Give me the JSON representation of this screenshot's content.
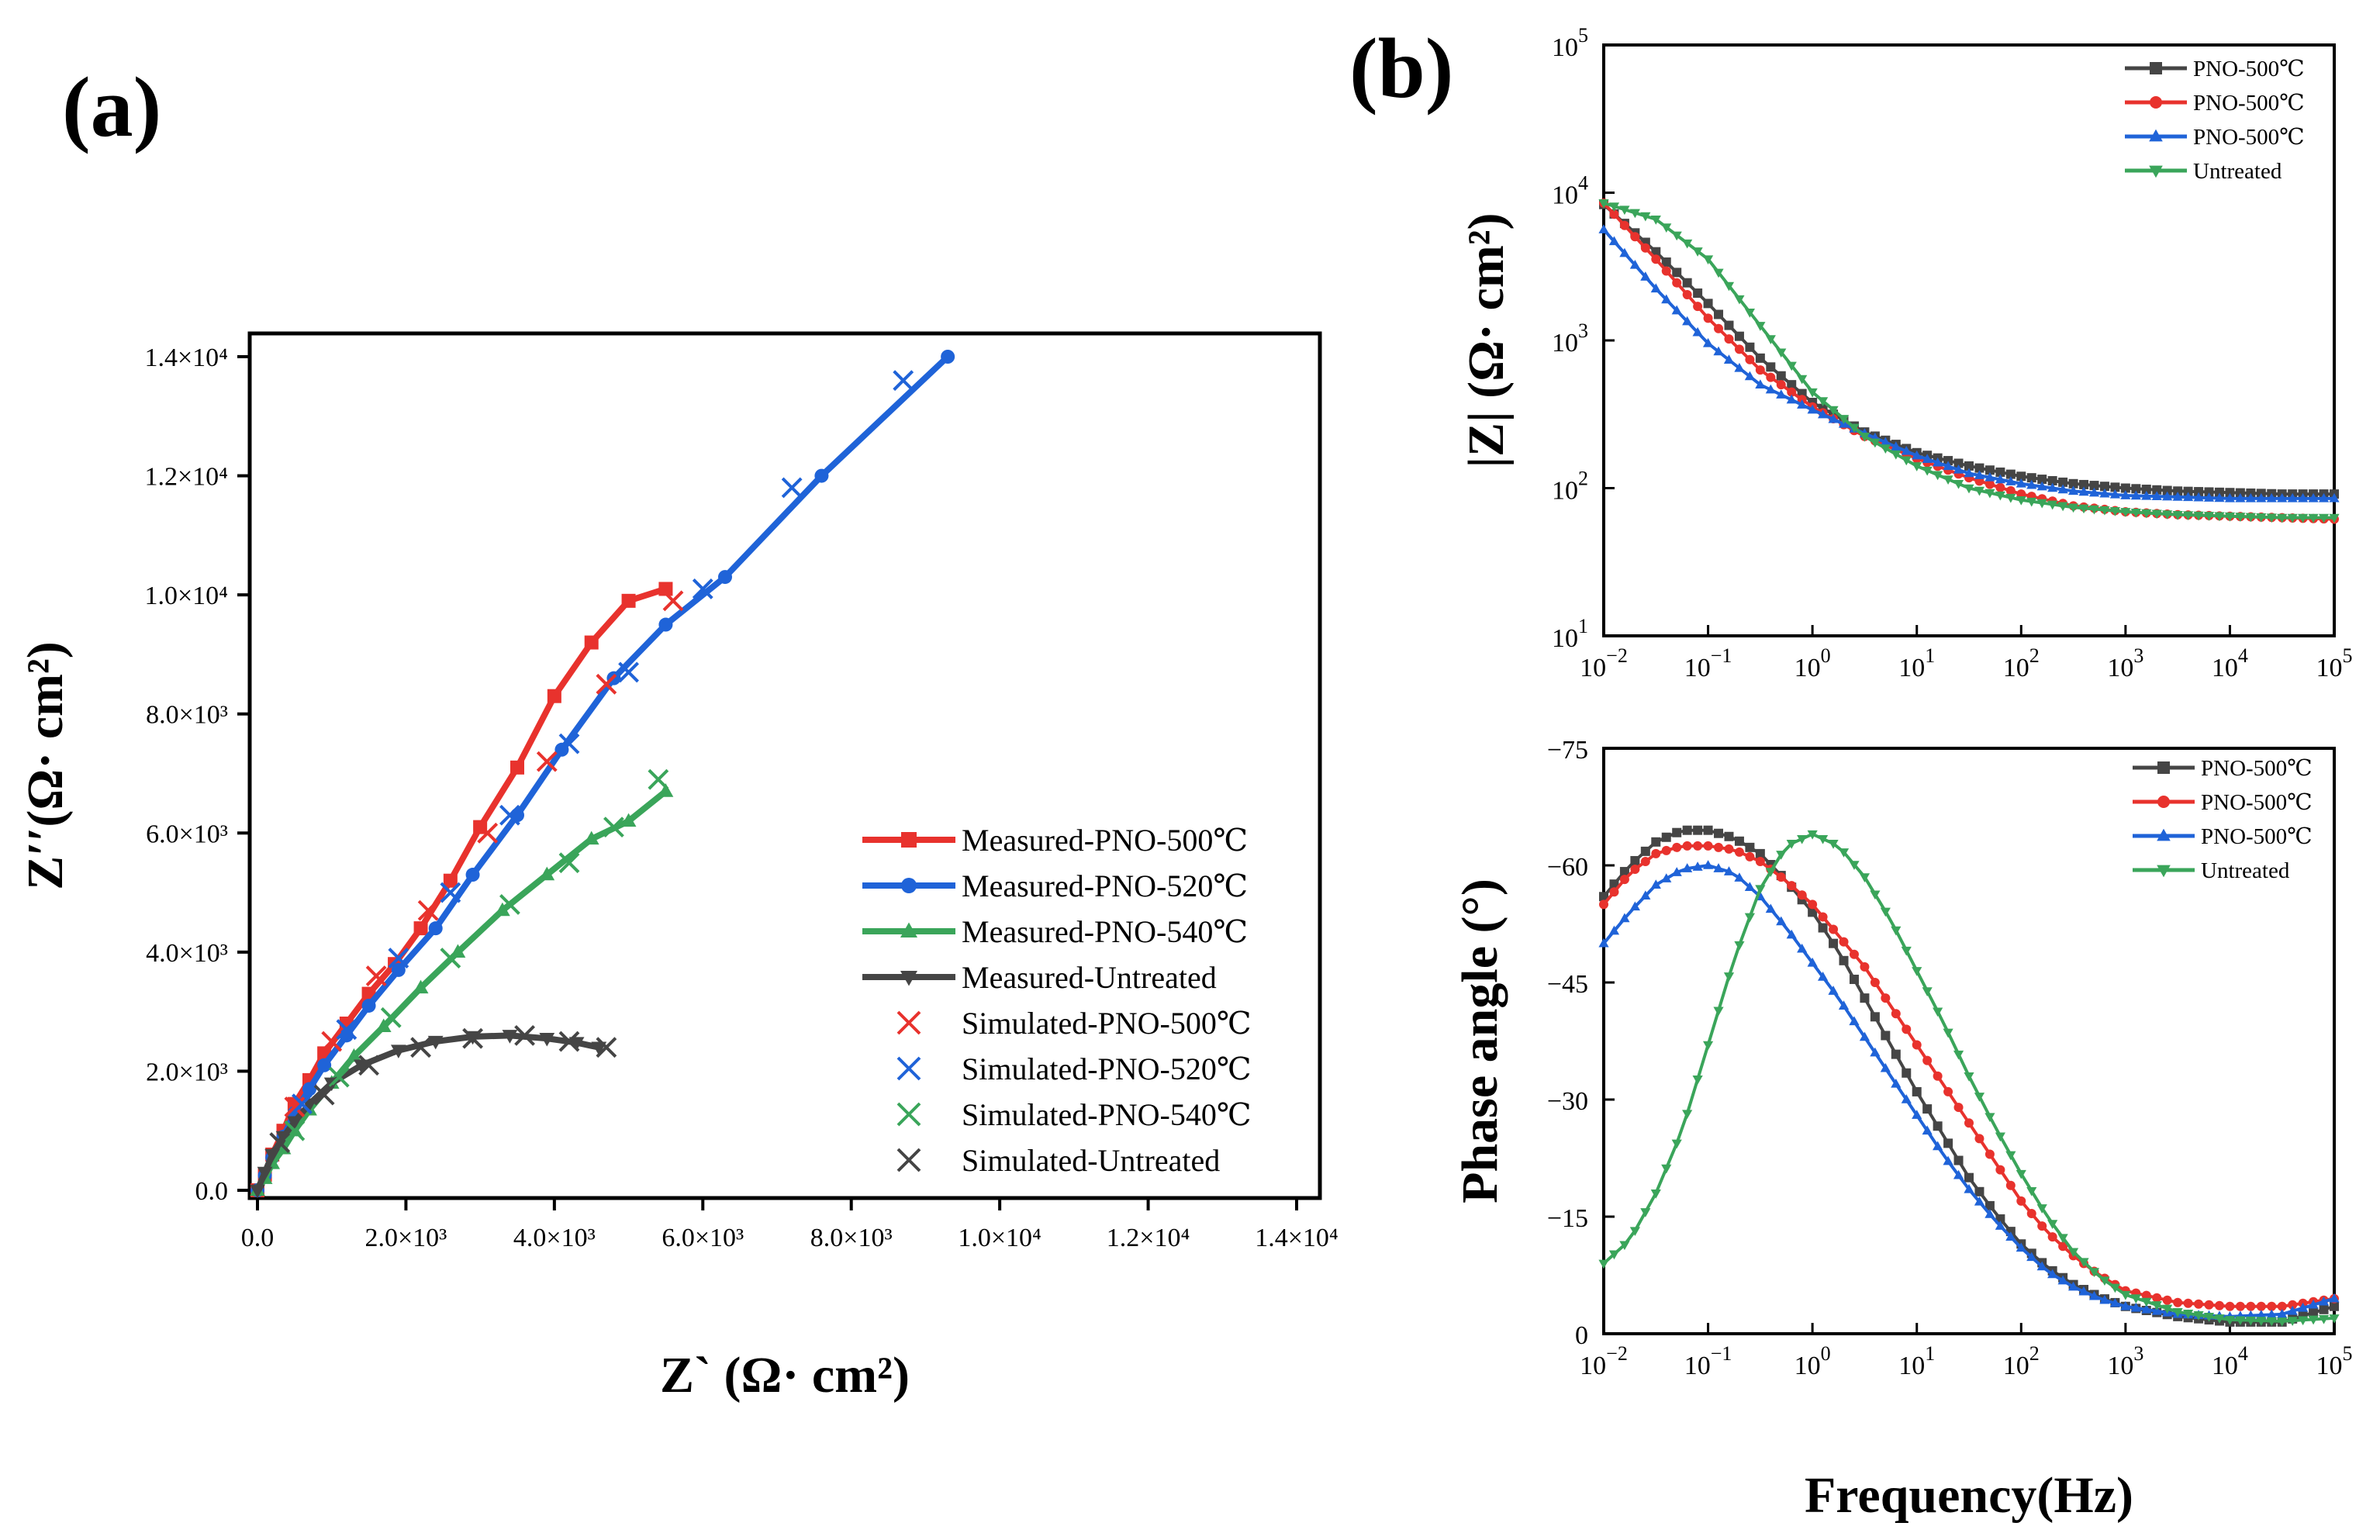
{
  "figure": {
    "panel_a_label": "(a)",
    "panel_b_label": "(b)"
  },
  "colors": {
    "red": "#e8322d",
    "blue": "#1f63d8",
    "green": "#3aa55a",
    "gray": "#454545"
  },
  "chart_data": [
    {
      "id": "nyquist",
      "type": "scatter",
      "title": "",
      "xlabel": "Z` (Ω· cm²)",
      "ylabel": "Z′′(Ω· cm²)",
      "xlim": [
        0,
        14000
      ],
      "ylim": [
        0,
        14500
      ],
      "xticks": [
        0,
        2000,
        4000,
        6000,
        8000,
        10000,
        12000,
        14000
      ],
      "xtick_labels": [
        "0.0",
        "2.0×10³",
        "4.0×10³",
        "6.0×10³",
        "8.0×10³",
        "1.0×10⁴",
        "1.2×10⁴",
        "1.4×10⁴"
      ],
      "yticks": [
        0,
        2000,
        4000,
        6000,
        8000,
        10000,
        12000,
        14000
      ],
      "ytick_labels": [
        "0.0",
        "2.0×10³",
        "4.0×10³",
        "6.0×10³",
        "8.0×10³",
        "1.0×10⁴",
        "1.2×10⁴",
        "1.4×10⁴"
      ],
      "legend_position": "bottom-right",
      "series": [
        {
          "name": "Measured-PNO-500℃",
          "color": "red",
          "marker": "square",
          "kind": "measured",
          "x": [
            0,
            100,
            200,
            350,
            500,
            700,
            900,
            1200,
            1500,
            1850,
            2200,
            2600,
            3000,
            3500,
            4000,
            4500,
            5000,
            5500
          ],
          "y": [
            0,
            260,
            600,
            1000,
            1450,
            1850,
            2300,
            2800,
            3300,
            3800,
            4400,
            5200,
            6100,
            7100,
            8300,
            9200,
            9900,
            10100
          ]
        },
        {
          "name": "Measured-PNO-520℃",
          "color": "blue",
          "marker": "circle",
          "kind": "measured",
          "x": [
            0,
            100,
            200,
            350,
            500,
            700,
            900,
            1200,
            1500,
            1900,
            2400,
            2900,
            3500,
            4100,
            4800,
            5500,
            6300,
            7600,
            9300
          ],
          "y": [
            0,
            250,
            550,
            900,
            1300,
            1700,
            2100,
            2600,
            3100,
            3700,
            4400,
            5300,
            6300,
            7400,
            8600,
            9500,
            10300,
            12000,
            14000
          ]
        },
        {
          "name": "Measured-PNO-540℃",
          "color": "green",
          "marker": "triangle-up",
          "kind": "measured",
          "x": [
            0,
            100,
            200,
            350,
            500,
            700,
            1000,
            1300,
            1700,
            2200,
            2700,
            3300,
            3900,
            4500,
            5000,
            5500
          ],
          "y": [
            0,
            200,
            450,
            700,
            1000,
            1350,
            1800,
            2250,
            2750,
            3400,
            4000,
            4700,
            5300,
            5900,
            6200,
            6700
          ]
        },
        {
          "name": "Measured-Untreated",
          "color": "gray",
          "marker": "triangle-down",
          "kind": "measured",
          "x": [
            0,
            100,
            200,
            350,
            500,
            700,
            1000,
            1400,
            1900,
            2400,
            2900,
            3400,
            3900,
            4300,
            4600
          ],
          "y": [
            0,
            300,
            600,
            900,
            1150,
            1450,
            1800,
            2100,
            2350,
            2500,
            2580,
            2600,
            2550,
            2480,
            2400
          ]
        },
        {
          "name": "Simulated-PNO-500℃",
          "color": "red",
          "marker": "x",
          "kind": "simulated",
          "x": [
            500,
            1000,
            1600,
            2300,
            3100,
            3900,
            4700,
            5600
          ],
          "y": [
            1400,
            2500,
            3600,
            4700,
            6000,
            7200,
            8500,
            9900
          ]
        },
        {
          "name": "Simulated-PNO-520℃",
          "color": "blue",
          "marker": "x",
          "kind": "simulated",
          "x": [
            600,
            1200,
            1900,
            2600,
            3400,
            4200,
            5000,
            6000,
            7200,
            8700
          ],
          "y": [
            1450,
            2700,
            3900,
            5000,
            6300,
            7500,
            8700,
            10100,
            11800,
            13600
          ]
        },
        {
          "name": "Simulated-PNO-540℃",
          "color": "green",
          "marker": "x",
          "kind": "simulated",
          "x": [
            500,
            1100,
            1800,
            2600,
            3400,
            4200,
            4800,
            5400
          ],
          "y": [
            1000,
            1900,
            2900,
            3900,
            4800,
            5500,
            6100,
            6900
          ]
        },
        {
          "name": "Simulated-Untreated",
          "color": "gray",
          "marker": "x",
          "kind": "simulated",
          "x": [
            300,
            900,
            1500,
            2200,
            2900,
            3600,
            4200,
            4700
          ],
          "y": [
            800,
            1600,
            2100,
            2400,
            2550,
            2600,
            2500,
            2400
          ]
        }
      ]
    },
    {
      "id": "bode-magnitude",
      "type": "line",
      "title": "",
      "xlabel": "",
      "ylabel": "|Z| (Ω· cm²)",
      "xscale": "log",
      "yscale": "log",
      "xlim": [
        0.01,
        100000
      ],
      "ylim": [
        10,
        100000
      ],
      "xtick_labels": [
        {
          "b": "10",
          "e": "−2"
        },
        {
          "b": "10",
          "e": "−1"
        },
        {
          "b": "10",
          "e": "0"
        },
        {
          "b": "10",
          "e": "1"
        },
        {
          "b": "10",
          "e": "2"
        },
        {
          "b": "10",
          "e": "3"
        },
        {
          "b": "10",
          "e": "4"
        },
        {
          "b": "10",
          "e": "5"
        }
      ],
      "ytick_labels": [
        {
          "b": "10",
          "e": "1"
        },
        {
          "b": "10",
          "e": "2"
        },
        {
          "b": "10",
          "e": "3"
        },
        {
          "b": "10",
          "e": "4"
        },
        {
          "b": "10",
          "e": "5"
        }
      ],
      "legend_position": "top-right",
      "series": [
        {
          "name": "PNO-500℃",
          "color": "gray",
          "marker": "square",
          "log_f": [
            -2,
            -1.5,
            -1,
            -0.5,
            0,
            0.5,
            1,
            1.5,
            2,
            2.5,
            3,
            3.5,
            4,
            4.5,
            5
          ],
          "log_z": [
            3.92,
            3.6,
            3.25,
            2.88,
            2.58,
            2.38,
            2.24,
            2.15,
            2.08,
            2.03,
            2.0,
            1.98,
            1.97,
            1.96,
            1.96
          ]
        },
        {
          "name": "PNO-500℃",
          "color": "red",
          "marker": "circle",
          "log_f": [
            -2,
            -1.5,
            -1,
            -0.5,
            0,
            0.5,
            1,
            1.5,
            2,
            2.5,
            3,
            3.5,
            4,
            4.5,
            5
          ],
          "log_z": [
            3.93,
            3.55,
            3.15,
            2.8,
            2.55,
            2.35,
            2.2,
            2.07,
            1.96,
            1.88,
            1.84,
            1.82,
            1.81,
            1.8,
            1.79
          ]
        },
        {
          "name": "PNO-500℃",
          "color": "blue",
          "marker": "triangle-up",
          "log_f": [
            -2,
            -1.5,
            -1,
            -0.5,
            0,
            0.5,
            1,
            1.5,
            2,
            2.5,
            3,
            3.5,
            4,
            4.5,
            5
          ],
          "log_z": [
            3.75,
            3.35,
            2.98,
            2.7,
            2.53,
            2.37,
            2.22,
            2.1,
            2.03,
            1.98,
            1.95,
            1.94,
            1.93,
            1.93,
            1.93
          ]
        },
        {
          "name": "Untreated",
          "color": "green",
          "marker": "triangle-down",
          "log_f": [
            -2,
            -1.5,
            -1,
            -0.5,
            0,
            0.5,
            1,
            1.5,
            2,
            2.5,
            3,
            3.5,
            4,
            4.5,
            5
          ],
          "log_z": [
            3.93,
            3.82,
            3.55,
            3.1,
            2.65,
            2.35,
            2.15,
            2.0,
            1.92,
            1.87,
            1.84,
            1.82,
            1.81,
            1.8,
            1.8
          ]
        }
      ]
    },
    {
      "id": "bode-phase",
      "type": "line",
      "title": "",
      "xlabel": "Frequency(Hz)",
      "ylabel": "Phase angle (°)",
      "xscale": "log",
      "xlim": [
        0.01,
        100000
      ],
      "ylim": [
        0,
        -75
      ],
      "xtick_labels": [
        {
          "b": "10",
          "e": "−2"
        },
        {
          "b": "10",
          "e": "−1"
        },
        {
          "b": "10",
          "e": "0"
        },
        {
          "b": "10",
          "e": "1"
        },
        {
          "b": "10",
          "e": "2"
        },
        {
          "b": "10",
          "e": "3"
        },
        {
          "b": "10",
          "e": "4"
        },
        {
          "b": "10",
          "e": "5"
        }
      ],
      "yticks": [
        0,
        -15,
        -30,
        -45,
        -60,
        -75
      ],
      "ytick_labels": [
        "0",
        "−15",
        "−30",
        "−45",
        "−60",
        "−75"
      ],
      "legend_position": "top-right",
      "series": [
        {
          "name": "PNO-500℃",
          "color": "gray",
          "marker": "square",
          "log_f": [
            -2,
            -1.75,
            -1.5,
            -1.25,
            -1,
            -0.75,
            -0.5,
            -0.25,
            0,
            0.25,
            0.5,
            0.75,
            1,
            1.25,
            1.5,
            1.75,
            2,
            2.25,
            2.5,
            2.75,
            3,
            3.5,
            4,
            4.5,
            5
          ],
          "phase": [
            -56,
            -60,
            -63,
            -64.5,
            -64.5,
            -63.5,
            -61.5,
            -58,
            -54,
            -49,
            -43,
            -37,
            -31,
            -25.5,
            -20,
            -15.5,
            -11.5,
            -8.5,
            -6.3,
            -4.7,
            -3.5,
            -2.2,
            -1.5,
            -1.5,
            -3.5
          ]
        },
        {
          "name": "PNO-500℃",
          "color": "red",
          "marker": "circle",
          "log_f": [
            -2,
            -1.75,
            -1.5,
            -1.25,
            -1,
            -0.75,
            -0.5,
            -0.25,
            0,
            0.25,
            0.5,
            0.75,
            1,
            1.25,
            1.5,
            1.75,
            2,
            2.25,
            2.5,
            2.75,
            3,
            3.5,
            4,
            4.5,
            5
          ],
          "phase": [
            -55,
            -59,
            -61.5,
            -62.5,
            -62.5,
            -62,
            -60.5,
            -58,
            -55,
            -51,
            -47,
            -42,
            -37,
            -32,
            -27,
            -22,
            -17,
            -13,
            -10,
            -7.5,
            -5.5,
            -4,
            -3.5,
            -3.5,
            -4.5
          ]
        },
        {
          "name": "PNO-500℃",
          "color": "blue",
          "marker": "triangle-up",
          "log_f": [
            -2,
            -1.75,
            -1.5,
            -1.25,
            -1,
            -0.75,
            -0.5,
            -0.25,
            0,
            0.25,
            0.5,
            0.75,
            1,
            1.25,
            1.5,
            1.75,
            2,
            2.25,
            2.5,
            2.75,
            3,
            3.5,
            4,
            4.5,
            5
          ],
          "phase": [
            -50,
            -54,
            -57.5,
            -59.5,
            -60,
            -59,
            -56,
            -52,
            -47.5,
            -43,
            -38,
            -33,
            -28,
            -23,
            -18.5,
            -14.5,
            -11,
            -8,
            -6,
            -4.5,
            -3.5,
            -2.5,
            -2.2,
            -2.5,
            -4.5
          ]
        },
        {
          "name": "Untreated",
          "color": "green",
          "marker": "triangle-down",
          "log_f": [
            -2,
            -1.75,
            -1.5,
            -1.25,
            -1,
            -0.75,
            -0.5,
            -0.25,
            0,
            0.25,
            0.5,
            0.75,
            1,
            1.25,
            1.5,
            1.75,
            2,
            2.25,
            2.5,
            2.75,
            3,
            3.5,
            4,
            4.5,
            5
          ],
          "phase": [
            -9,
            -12,
            -18,
            -26,
            -37,
            -48,
            -57,
            -62.5,
            -64,
            -62.5,
            -58.5,
            -53,
            -46.5,
            -40,
            -33,
            -26.5,
            -20.5,
            -15,
            -10.5,
            -7.3,
            -5,
            -2.8,
            -1.8,
            -1.6,
            -2
          ]
        }
      ]
    }
  ]
}
